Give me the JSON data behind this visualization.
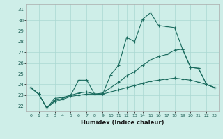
{
  "xlabel": "Humidex (Indice chaleur)",
  "bg_color": "#ceeee8",
  "grid_color": "#aad8d2",
  "line_color": "#1a6b5e",
  "xlim": [
    -0.5,
    23.5
  ],
  "ylim": [
    21.5,
    31.5
  ],
  "xticks": [
    0,
    1,
    2,
    3,
    4,
    5,
    6,
    7,
    8,
    9,
    10,
    11,
    12,
    13,
    14,
    15,
    16,
    17,
    18,
    19,
    20,
    21,
    22,
    23
  ],
  "yticks": [
    22,
    23,
    24,
    25,
    26,
    27,
    28,
    29,
    30,
    31
  ],
  "line1": [
    23.7,
    23.1,
    21.8,
    22.7,
    22.8,
    23.0,
    24.4,
    24.4,
    23.1,
    23.1,
    24.9,
    25.8,
    28.4,
    28.0,
    30.1,
    30.7,
    29.5,
    29.4,
    29.3,
    27.3,
    25.6,
    25.5,
    24.0,
    23.7
  ],
  "line2": [
    23.7,
    23.1,
    21.8,
    22.5,
    22.7,
    23.0,
    23.2,
    23.3,
    23.1,
    23.2,
    23.7,
    24.2,
    24.8,
    25.2,
    25.8,
    26.3,
    26.6,
    26.8,
    27.2,
    27.3,
    25.6,
    25.5,
    24.0,
    23.7
  ],
  "line3": [
    23.7,
    23.1,
    21.8,
    22.4,
    22.6,
    22.9,
    23.0,
    23.1,
    23.1,
    23.1,
    23.3,
    23.5,
    23.7,
    23.9,
    24.1,
    24.3,
    24.4,
    24.5,
    24.6,
    24.5,
    24.4,
    24.2,
    24.0,
    23.7
  ]
}
